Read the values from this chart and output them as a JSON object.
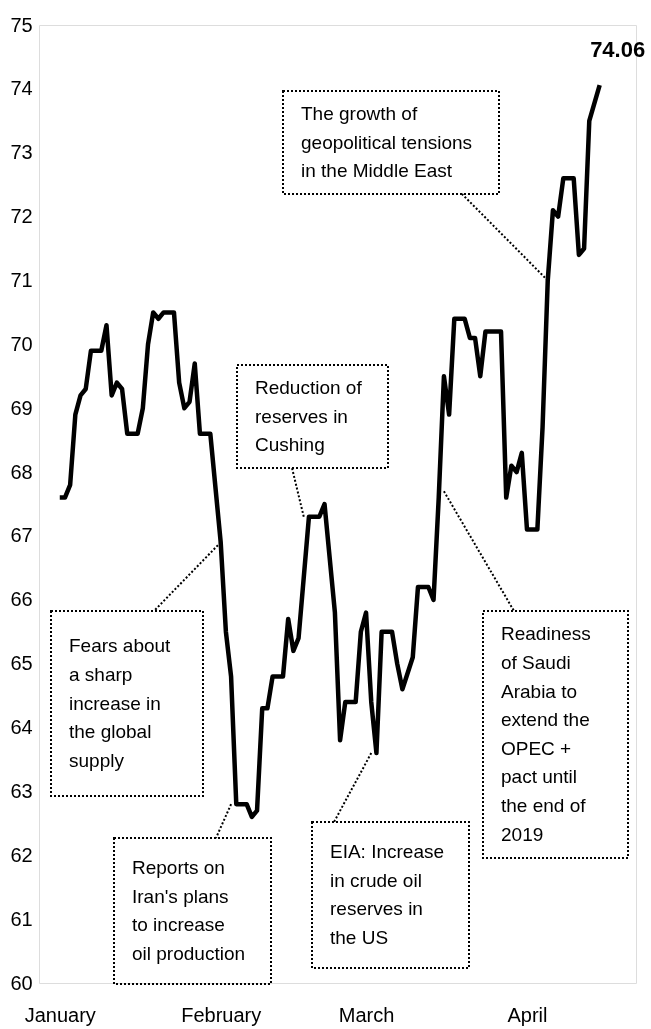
{
  "chart_data": {
    "type": "line",
    "x": [
      "2019-01-01",
      "2019-01-02",
      "2019-01-03",
      "2019-01-04",
      "2019-01-05",
      "2019-01-06",
      "2019-01-07",
      "2019-01-09",
      "2019-01-10",
      "2019-01-11",
      "2019-01-12",
      "2019-01-13",
      "2019-01-14",
      "2019-01-16",
      "2019-01-17",
      "2019-01-18",
      "2019-01-19",
      "2019-01-20",
      "2019-01-21",
      "2019-01-23",
      "2019-01-24",
      "2019-01-25",
      "2019-01-26",
      "2019-01-27",
      "2019-01-28",
      "2019-01-30",
      "2019-02-01",
      "2019-02-02",
      "2019-02-03",
      "2019-02-04",
      "2019-02-06",
      "2019-02-07",
      "2019-02-08",
      "2019-02-09",
      "2019-02-10",
      "2019-02-11",
      "2019-02-13",
      "2019-02-14",
      "2019-02-15",
      "2019-02-16",
      "2019-02-18",
      "2019-02-20",
      "2019-02-21",
      "2019-02-23",
      "2019-02-24",
      "2019-02-25",
      "2019-02-27",
      "2019-02-28",
      "2019-03-01",
      "2019-03-02",
      "2019-03-03",
      "2019-03-04",
      "2019-03-06",
      "2019-03-07",
      "2019-03-08",
      "2019-03-10",
      "2019-03-11",
      "2019-03-13",
      "2019-03-14",
      "2019-03-15",
      "2019-03-16",
      "2019-03-17",
      "2019-03-18",
      "2019-03-20",
      "2019-03-21",
      "2019-03-22",
      "2019-03-23",
      "2019-03-24",
      "2019-03-27",
      "2019-03-28",
      "2019-03-29",
      "2019-03-30",
      "2019-03-31",
      "2019-04-01",
      "2019-04-03",
      "2019-04-04",
      "2019-04-05",
      "2019-04-06",
      "2019-04-07",
      "2019-04-08",
      "2019-04-10",
      "2019-04-11",
      "2019-04-12",
      "2019-04-13",
      "2019-04-15"
    ],
    "series": [
      {
        "color": "#000000",
        "values": [
          67.6,
          67.6,
          67.8,
          68.9,
          69.2,
          69.3,
          69.9,
          69.9,
          70.3,
          69.2,
          69.4,
          69.3,
          68.6,
          68.6,
          69.0,
          70.0,
          70.5,
          70.4,
          70.5,
          70.5,
          69.4,
          69.0,
          69.1,
          69.7,
          68.6,
          68.6,
          66.9,
          65.5,
          64.8,
          62.8,
          62.8,
          62.6,
          62.7,
          64.3,
          64.3,
          64.8,
          64.8,
          65.7,
          65.2,
          65.4,
          67.3,
          67.3,
          67.5,
          65.8,
          63.8,
          64.4,
          64.4,
          65.5,
          65.8,
          64.4,
          63.6,
          65.5,
          65.5,
          65.0,
          64.6,
          65.1,
          66.2,
          66.2,
          66.0,
          67.6,
          69.5,
          68.9,
          70.4,
          70.4,
          70.1,
          70.1,
          69.5,
          70.2,
          70.2,
          67.6,
          68.1,
          68.0,
          68.3,
          67.1,
          67.1,
          68.7,
          71.0,
          72.1,
          72.0,
          72.6,
          72.6,
          71.4,
          71.5,
          73.5,
          74.06
        ]
      }
    ],
    "xlim": [
      "2018-12-28",
      "2019-04-22"
    ],
    "xticks": [
      {
        "value": "2019-01-01",
        "label": "January"
      },
      {
        "value": "2019-02-01",
        "label": "February"
      },
      {
        "value": "2019-03-01",
        "label": "March"
      },
      {
        "value": "2019-04-01",
        "label": "April"
      }
    ],
    "ylim": [
      60,
      75
    ],
    "yticks": [
      60,
      61,
      62,
      63,
      64,
      65,
      66,
      67,
      68,
      69,
      70,
      71,
      72,
      73,
      74,
      75
    ],
    "grid": false,
    "line_style": "solid",
    "marker": "none",
    "annotations": [
      {
        "text": "Fears about a sharp increase in the global supply",
        "x": "2019-02-01",
        "y": 66.9
      },
      {
        "text": "Reports on Iran's plans to increase oil production",
        "x": "2019-02-03",
        "y": 62.8
      },
      {
        "text": "Reduction of reserves in Cushing",
        "x": "2019-02-17",
        "y": 67.3
      },
      {
        "text": "EIA: Increase in crude oil reserves in the US",
        "x": "2019-03-02",
        "y": 63.6
      },
      {
        "text": "Readiness of Saudi Arabia to extend the OPEC + pact until the end of 2019",
        "x": "2019-03-16",
        "y": 67.7
      },
      {
        "text": "The growth of geopolitical tensions in the Middle East",
        "x": "2019-04-05",
        "y": 71.0
      },
      {
        "text": "74.06",
        "x": "2019-04-15",
        "y": 74.06
      }
    ]
  }
}
